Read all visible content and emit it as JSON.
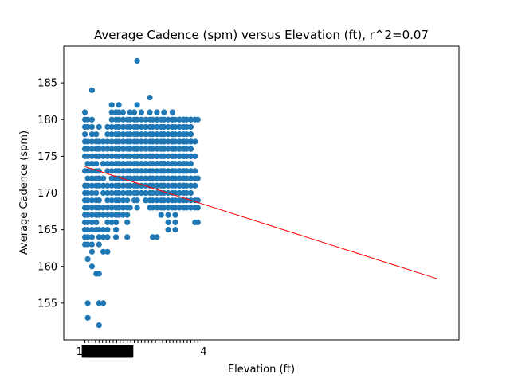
{
  "chart_data": {
    "type": "scatter",
    "title": "Average Cadence (spm) versus Elevation (ft), r^2=0.07",
    "xlabel": "Elevation (ft)",
    "ylabel": "Average Cadence (spm)",
    "ylim": [
      150,
      190
    ],
    "xlim": [
      -1.5,
      26.5
    ],
    "yticks": [
      155,
      160,
      165,
      170,
      175,
      180,
      185
    ],
    "x_tick_label_fragments": [
      "1",
      "4"
    ],
    "point_color": "#1f77b4",
    "trend_color": "#ff0000",
    "grid": false,
    "x": [
      0,
      0,
      0,
      0,
      0,
      0,
      0,
      0,
      0,
      0,
      0,
      0,
      0,
      0,
      0,
      0,
      0,
      0.2,
      0.2,
      0.2,
      0.2,
      0.2,
      0.2,
      0.2,
      0.2,
      0.2,
      0.2,
      0.2,
      0.2,
      0.2,
      0.2,
      0.2,
      0.2,
      0.2,
      0.2,
      0.2,
      0.2,
      0.5,
      0.5,
      0.5,
      0.5,
      0.5,
      0.5,
      0.5,
      0.5,
      0.5,
      0.5,
      0.5,
      0.5,
      0.5,
      0.5,
      0.5,
      0.5,
      0.5,
      0.5,
      0.5,
      0.5,
      0.5,
      0.8,
      0.8,
      0.8,
      0.8,
      0.8,
      0.8,
      0.8,
      0.8,
      0.8,
      0.8,
      0.8,
      0.8,
      0.8,
      0.8,
      0.8,
      1.0,
      1.0,
      1.0,
      1.0,
      1.0,
      1.0,
      1.0,
      1.0,
      1.0,
      1.0,
      1.0,
      1.0,
      1.0,
      1.0,
      1.0,
      1.0,
      1.3,
      1.3,
      1.3,
      1.3,
      1.3,
      1.3,
      1.3,
      1.3,
      1.3,
      1.3,
      1.3,
      1.3,
      1.3,
      1.6,
      1.6,
      1.6,
      1.6,
      1.6,
      1.6,
      1.6,
      1.6,
      1.6,
      1.6,
      1.6,
      1.6,
      1.6,
      1.6,
      1.6,
      1.6,
      1.9,
      1.9,
      1.9,
      1.9,
      1.9,
      1.9,
      1.9,
      1.9,
      1.9,
      1.9,
      1.9,
      1.9,
      1.9,
      1.9,
      1.9,
      1.9,
      1.9,
      2.2,
      2.2,
      2.2,
      2.2,
      2.2,
      2.2,
      2.2,
      2.2,
      2.2,
      2.2,
      2.2,
      2.2,
      2.2,
      2.2,
      2.2,
      2.2,
      2.2,
      2.2,
      2.4,
      2.4,
      2.4,
      2.4,
      2.4,
      2.4,
      2.4,
      2.4,
      2.4,
      2.4,
      2.4,
      2.4,
      2.4,
      2.4,
      2.4,
      2.4,
      2.4,
      2.4,
      2.4,
      2.7,
      2.7,
      2.7,
      2.7,
      2.7,
      2.7,
      2.7,
      2.7,
      2.7,
      2.7,
      2.7,
      2.7,
      2.7,
      2.7,
      2.7,
      2.7,
      2.7,
      3.0,
      3.0,
      3.0,
      3.0,
      3.0,
      3.0,
      3.0,
      3.0,
      3.0,
      3.0,
      3.0,
      3.0,
      3.0,
      3.0,
      3.0,
      3.0,
      3.0,
      3.0,
      3.2,
      3.2,
      3.2,
      3.2,
      3.2,
      3.2,
      3.2,
      3.2,
      3.2,
      3.2,
      3.2,
      3.2,
      3.2,
      3.5,
      3.5,
      3.5,
      3.5,
      3.5,
      3.5,
      3.5,
      3.5,
      3.5,
      3.5,
      3.5,
      3.5,
      3.5,
      3.7,
      3.7,
      3.7,
      3.7,
      3.7,
      3.7,
      3.7,
      3.7,
      3.7,
      3.7,
      3.7,
      3.7,
      3.7,
      3.7,
      3.7,
      3.7,
      3.7,
      4.0,
      4.0,
      4.0,
      4.0,
      4.0,
      4.0,
      4.0,
      4.0,
      4.0,
      4.0,
      4.0,
      4.0,
      4.3,
      4.3,
      4.3,
      4.3,
      4.3,
      4.3,
      4.3,
      4.3,
      4.3,
      4.3,
      4.3,
      4.3,
      4.6,
      4.6,
      4.6,
      4.6,
      4.6,
      4.6,
      4.6,
      4.6,
      4.6,
      4.6,
      4.6,
      4.6,
      4.6,
      4.6,
      4.6,
      4.6,
      4.6,
      4.8,
      4.8,
      4.8,
      4.8,
      4.8,
      4.8,
      4.8,
      4.8,
      4.8,
      4.8,
      4.8,
      4.8,
      4.8,
      4.8,
      5.1,
      5.1,
      5.1,
      5.1,
      5.1,
      5.1,
      5.1,
      5.1,
      5.1,
      5.1,
      5.1,
      5.1,
      5.1,
      5.1,
      5.1,
      5.1,
      5.1,
      5.1,
      5.1,
      5.1,
      5.1,
      5.4,
      5.4,
      5.4,
      5.4,
      5.4,
      5.4,
      5.4,
      5.4,
      5.4,
      5.4,
      5.4,
      5.4,
      5.4,
      5.4,
      5.6,
      5.6,
      5.6,
      5.6,
      5.6,
      5.6,
      5.6,
      5.6,
      5.6,
      5.6,
      5.6,
      5.6,
      5.6,
      5.6,
      5.6,
      5.6,
      5.6,
      5.6,
      5.6,
      5.6,
      5.6,
      5.6,
      5.6,
      5.9,
      5.9,
      5.9,
      5.9,
      5.9,
      5.9,
      5.9,
      5.9,
      5.9,
      5.9,
      5.9,
      5.9,
      5.9,
      5.9,
      5.9,
      5.9,
      6.2,
      6.2,
      6.2,
      6.2,
      6.2,
      6.2,
      6.2,
      6.2,
      6.2,
      6.2,
      6.2,
      6.2,
      6.2,
      6.2,
      6.2,
      6.2,
      6.2,
      6.2,
      6.2,
      6.2,
      6.2,
      6.2,
      6.4,
      6.4,
      6.4,
      6.4,
      6.4,
      6.4,
      6.4,
      6.4,
      6.4,
      6.4,
      6.4,
      6.4,
      6.4,
      6.4,
      6.4,
      6.4,
      6.7,
      6.7,
      6.7,
      6.7,
      6.7,
      6.7,
      6.7,
      6.7,
      6.7,
      6.7,
      6.7,
      6.7,
      6.7,
      6.7,
      6.7,
      6.7,
      6.7,
      6.7,
      6.7,
      6.7,
      6.7,
      6.7,
      7.0,
      7.0,
      7.0,
      7.0,
      7.0,
      7.0,
      7.0,
      7.0,
      7.0,
      7.0,
      7.0,
      7.0,
      7.0,
      7.0,
      7.0,
      7.0,
      7.0,
      7.0,
      7.0,
      7.2,
      7.2,
      7.2,
      7.2,
      7.2,
      7.2,
      7.2,
      7.2,
      7.2,
      7.2,
      7.2,
      7.2,
      7.2,
      7.2,
      7.2,
      7.2,
      7.2,
      7.5,
      7.5,
      7.5,
      7.5,
      7.5,
      7.5,
      7.5,
      7.5,
      7.5,
      7.5,
      7.5,
      7.5,
      7.5,
      7.5,
      7.5,
      7.5,
      7.5,
      7.5,
      7.8,
      7.8,
      7.8,
      7.8,
      7.8,
      7.8,
      7.8,
      7.8,
      7.8,
      8.0,
      8.0,
      8.0,
      8.0,
      8.0
    ],
    "y": [
      179,
      177,
      176,
      175,
      173,
      171,
      170,
      169,
      168,
      167,
      166,
      165,
      164,
      163,
      181,
      180,
      178,
      180,
      179,
      177,
      176,
      175,
      174,
      173,
      172,
      171,
      170,
      169,
      168,
      167,
      166,
      165,
      164,
      163,
      161,
      155,
      153,
      180,
      179,
      178,
      177,
      176,
      175,
      174,
      173,
      172,
      171,
      170,
      169,
      168,
      167,
      166,
      165,
      164,
      163,
      162,
      160,
      184,
      178,
      177,
      176,
      175,
      174,
      173,
      172,
      171,
      170,
      169,
      168,
      167,
      166,
      165,
      159,
      179,
      177,
      176,
      175,
      173,
      172,
      171,
      169,
      168,
      167,
      165,
      164,
      163,
      159,
      155,
      152,
      177,
      176,
      175,
      174,
      172,
      171,
      170,
      168,
      167,
      165,
      164,
      162,
      155,
      179,
      178,
      177,
      176,
      175,
      174,
      173,
      171,
      170,
      169,
      168,
      167,
      166,
      165,
      164,
      162,
      182,
      181,
      180,
      179,
      178,
      177,
      176,
      175,
      174,
      173,
      172,
      171,
      170,
      169,
      168,
      167,
      166,
      181,
      180,
      179,
      178,
      177,
      176,
      175,
      174,
      173,
      172,
      171,
      170,
      169,
      168,
      167,
      166,
      165,
      164,
      180,
      179,
      178,
      177,
      176,
      175,
      174,
      173,
      172,
      171,
      170,
      169,
      168,
      167,
      182,
      181,
      176,
      171,
      168,
      181,
      180,
      179,
      178,
      177,
      176,
      175,
      174,
      173,
      172,
      171,
      170,
      169,
      168,
      167,
      176,
      173,
      179,
      178,
      177,
      176,
      175,
      174,
      173,
      172,
      171,
      170,
      169,
      168,
      167,
      166,
      164,
      180,
      175,
      172,
      181,
      180,
      179,
      178,
      177,
      176,
      175,
      174,
      173,
      172,
      171,
      170,
      168,
      181,
      180,
      179,
      178,
      177,
      176,
      175,
      174,
      173,
      172,
      171,
      170,
      169,
      180,
      179,
      178,
      177,
      176,
      175,
      174,
      173,
      172,
      171,
      170,
      169,
      168,
      182,
      188,
      176,
      171,
      181,
      180,
      179,
      178,
      177,
      176,
      175,
      174,
      173,
      172,
      171,
      170,
      180,
      179,
      178,
      177,
      176,
      175,
      174,
      173,
      172,
      171,
      170,
      169,
      181,
      180,
      179,
      178,
      177,
      176,
      175,
      174,
      173,
      172,
      171,
      170,
      169,
      168,
      183,
      175,
      172,
      180,
      179,
      178,
      177,
      176,
      175,
      174,
      173,
      172,
      171,
      170,
      169,
      168,
      164,
      181,
      180,
      179,
      178,
      177,
      176,
      175,
      174,
      173,
      172,
      171,
      170,
      169,
      168,
      180,
      177,
      175,
      173,
      172,
      171,
      164,
      180,
      179,
      178,
      177,
      176,
      175,
      174,
      173,
      172,
      171,
      170,
      169,
      168,
      167,
      181,
      180,
      179,
      178,
      177,
      176,
      175,
      174,
      173,
      172,
      171,
      170,
      169,
      168,
      180,
      178,
      177,
      176,
      175,
      174,
      173,
      172,
      171,
      180,
      179,
      178,
      177,
      176,
      175,
      174,
      173,
      172,
      171,
      170,
      169,
      168,
      167,
      166,
      165,
      181,
      180,
      179,
      178,
      177,
      176,
      175,
      174,
      173,
      172,
      171,
      170,
      169,
      168,
      180,
      178,
      177,
      176,
      175,
      174,
      173,
      172,
      180,
      179,
      178,
      177,
      176,
      175,
      174,
      173,
      172,
      171,
      170,
      169,
      168,
      167,
      166,
      165,
      180,
      179,
      178,
      177,
      176,
      175,
      174,
      173,
      172,
      171,
      170,
      169,
      168,
      180,
      178,
      177,
      176,
      175,
      174,
      173,
      172,
      171,
      180,
      179,
      178,
      177,
      176,
      175,
      174,
      173,
      172,
      171,
      170,
      169,
      168,
      180,
      177,
      175,
      173,
      172,
      171,
      180,
      179,
      178,
      177,
      176,
      175,
      174,
      173,
      172,
      171,
      170,
      169,
      168,
      180,
      177,
      175,
      173,
      180,
      179,
      178,
      177,
      176,
      175,
      174,
      173,
      172,
      171,
      170,
      169,
      168,
      180,
      178,
      177,
      176,
      175,
      180,
      177,
      175,
      173,
      171,
      169,
      168,
      166,
      172,
      180,
      172,
      169,
      168,
      166
    ],
    "trendline": {
      "x": [
        0,
        25
      ],
      "y": [
        173.6,
        158.3
      ]
    }
  }
}
